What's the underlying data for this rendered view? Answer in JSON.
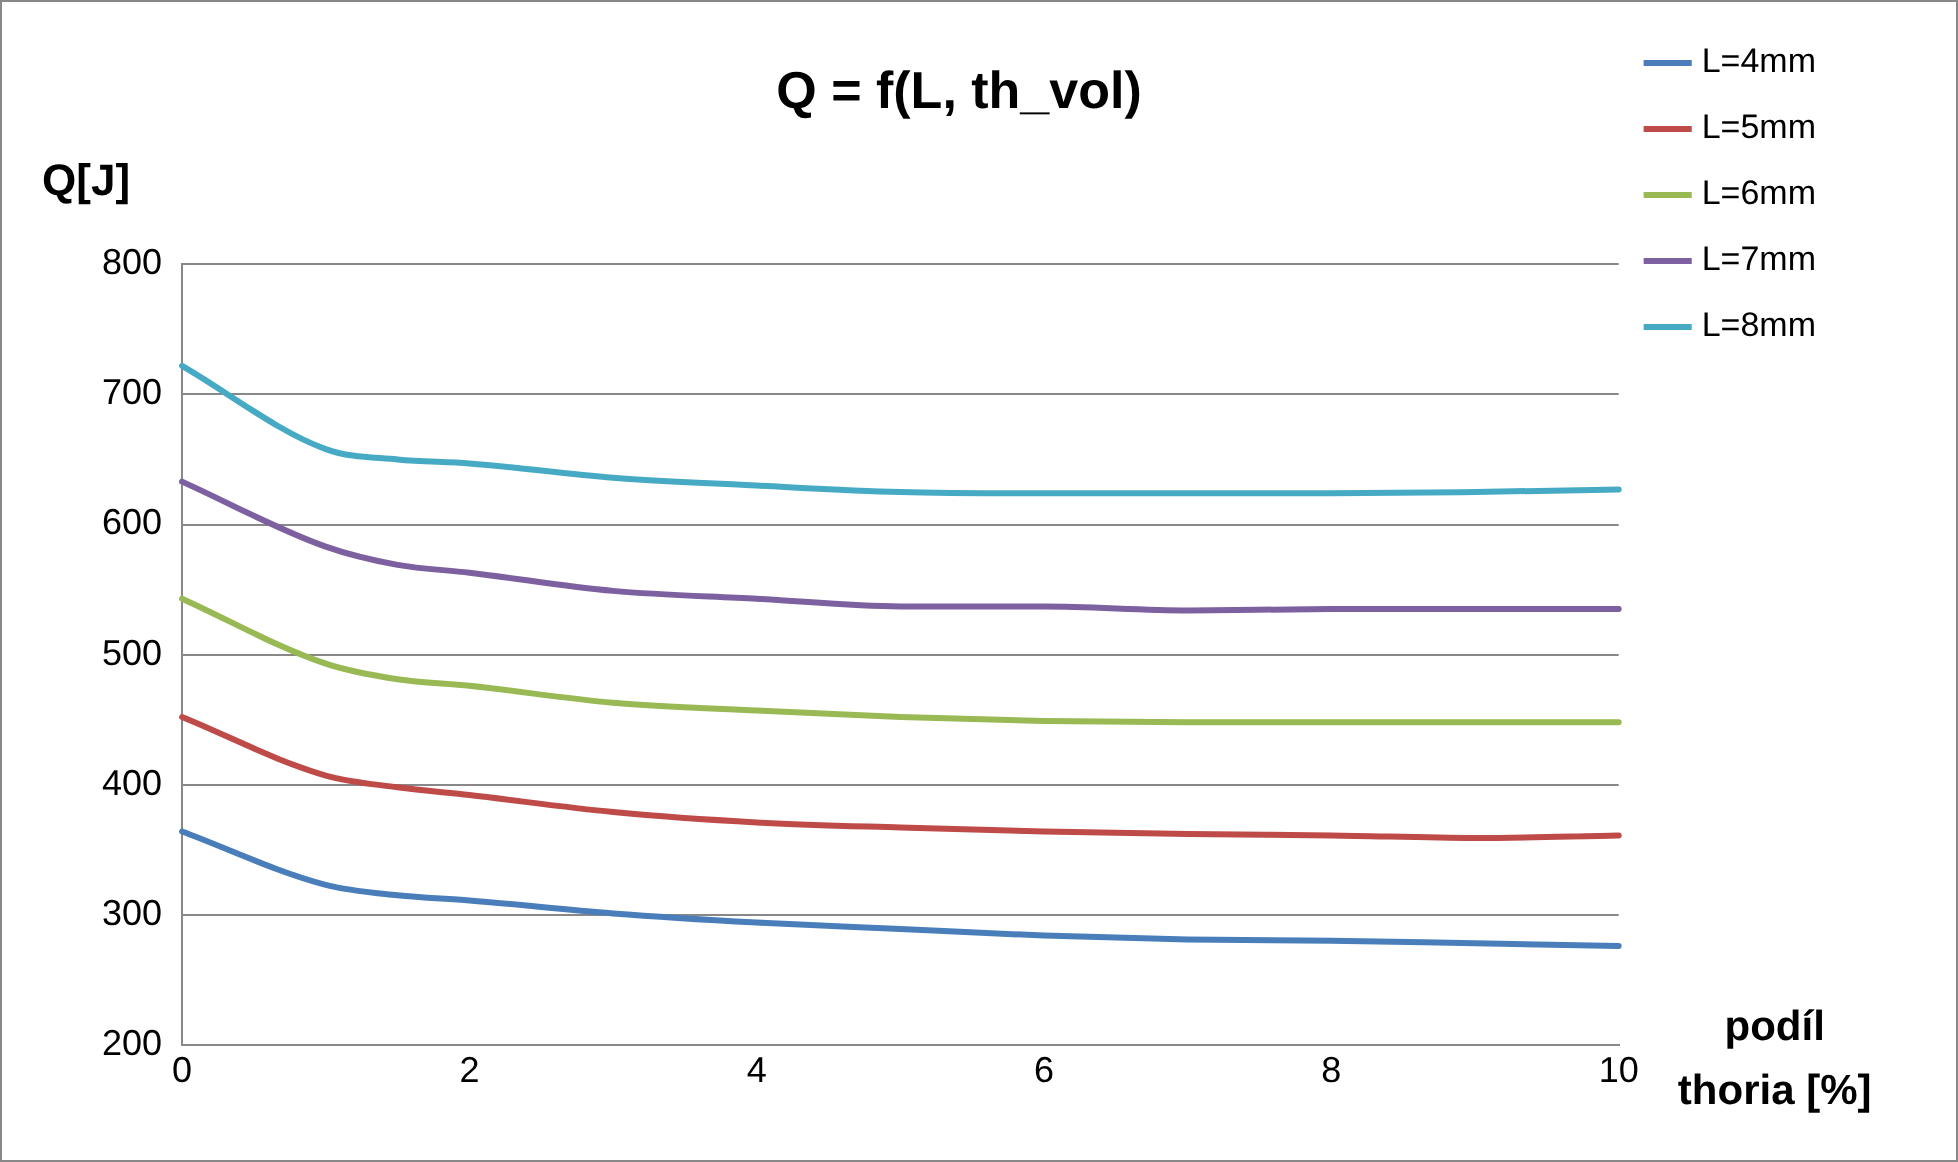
{
  "chart_data": {
    "type": "line",
    "title": "Q = f(L, th_vol)",
    "xlabel": "podíl thoria [%]",
    "ylabel": "Q[J]",
    "x": [
      0,
      1,
      1.5,
      2,
      3,
      4,
      5,
      6,
      7,
      8,
      9,
      10
    ],
    "series": [
      {
        "name": "L=4mm",
        "color": "#4a7ebb",
        "values": [
          364,
          323,
          315,
          311,
          301,
          294,
          289,
          284,
          281,
          280,
          278,
          276
        ]
      },
      {
        "name": "L=5mm",
        "color": "#be4b48",
        "values": [
          452,
          407,
          398,
          392,
          379,
          371,
          367,
          364,
          362,
          361,
          359,
          361
        ]
      },
      {
        "name": "L=6mm",
        "color": "#98b954",
        "values": [
          543,
          493,
          481,
          476,
          463,
          457,
          452,
          449,
          448,
          448,
          448,
          448
        ]
      },
      {
        "name": "L=7mm",
        "color": "#7d60a0",
        "values": [
          633,
          583,
          569,
          563,
          549,
          543,
          537,
          537,
          534,
          535,
          535,
          535
        ]
      },
      {
        "name": "L=8mm",
        "color": "#46aac5",
        "values": [
          722,
          658,
          650,
          647,
          636,
          630,
          625,
          624,
          624,
          624,
          625,
          627
        ]
      }
    ],
    "xlim": [
      0,
      10
    ],
    "xticks": [
      0,
      2,
      4,
      6,
      8,
      10
    ],
    "ylim": [
      200,
      800
    ],
    "yticks": [
      200,
      300,
      400,
      500,
      600,
      700,
      800
    ],
    "grid": "y",
    "legend": "right",
    "marker": "none",
    "line_style": "solid"
  }
}
